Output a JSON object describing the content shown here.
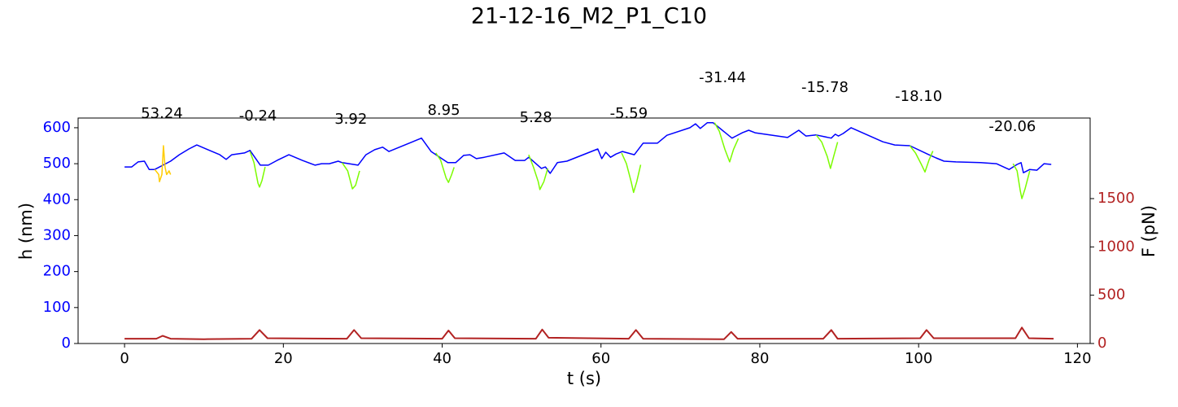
{
  "chart_data": {
    "type": "line",
    "title": "21-12-16_M2_P1_C10",
    "xlabel": "t (s)",
    "ylabel": "h (nm)",
    "y2label": "F (pN)",
    "ylabel_color": "#0000ff",
    "y2label_color": "#b22222",
    "xlim": [
      -5.85,
      121.6
    ],
    "xticks": [
      0,
      20,
      40,
      60,
      80,
      100,
      120
    ],
    "ylim": [
      0,
      627
    ],
    "yticks": [
      0,
      100,
      200,
      300,
      400,
      500,
      600
    ],
    "y2lim": [
      0,
      2334
    ],
    "y2ticks": [
      0,
      500,
      1000,
      1500
    ],
    "series": [
      {
        "color": "#0000ff",
        "axis": "y",
        "x": [
          0,
          0.9,
          1.7,
          2.5,
          3.1,
          3.8,
          5.8,
          6.9,
          8.1,
          9.1,
          10.5,
          12,
          12.8,
          13.5,
          15.1,
          15.8,
          17.1,
          18.1,
          19.2,
          20.7,
          22.4,
          24,
          24.8,
          25.8,
          26.9,
          27.4,
          29.4,
          30.4,
          31.5,
          32.5,
          33.3,
          37.4,
          38.6,
          40.7,
          41.7,
          42.7,
          43.5,
          44.3,
          45.3,
          47.8,
          49.2,
          50.4,
          50.9,
          52.5,
          53,
          53.6,
          54.5,
          55.7,
          59.6,
          60.1,
          60.6,
          61.2,
          61.9,
          62.7,
          64.2,
          65.3,
          65.9,
          67.1,
          68.3,
          71.2,
          71.9,
          72.5,
          73.4,
          74.1,
          76.5,
          77,
          77.8,
          78.6,
          79.4,
          83.5,
          84.9,
          85.8,
          87.1,
          89,
          89.5,
          89.9,
          90.5,
          91.5,
          95.5,
          97,
          98.9,
          101.1,
          102.2,
          103.2,
          104.7,
          107.8,
          109.8,
          111.4,
          112.4,
          112.9,
          113.2,
          114,
          114.9,
          115.8,
          116.7
        ],
        "values": [
          491,
          491,
          505,
          507,
          484,
          484,
          507,
          525,
          541,
          552,
          539,
          525,
          512,
          525,
          530,
          537,
          496,
          496,
          509,
          525,
          509,
          496,
          500,
          500,
          507,
          503,
          496,
          525,
          539,
          546,
          534,
          571,
          534,
          503,
          503,
          523,
          525,
          514,
          518,
          530,
          509,
          509,
          518,
          487,
          491,
          473,
          503,
          507,
          541,
          514,
          532,
          518,
          527,
          534,
          525,
          557,
          557,
          557,
          579,
          600,
          611,
          598,
          614,
          614,
          571,
          577,
          586,
          593,
          586,
          573,
          593,
          577,
          580,
          571,
          582,
          577,
          584,
          600,
          561,
          552,
          550,
          527,
          516,
          507,
          505,
          503,
          500,
          484,
          498,
          503,
          475,
          484,
          482,
          500,
          498
        ]
      },
      {
        "color": "#ffcc00",
        "axis": "y",
        "x": [
          3.8,
          4.3,
          4.4,
          4.7,
          4.9,
          5.1,
          5.3,
          5.6,
          5.8
        ],
        "values": [
          484,
          470,
          450,
          470,
          550,
          490,
          470,
          480,
          470
        ]
      },
      {
        "color": "#7cfc00",
        "axis": "y",
        "x": [
          15.8,
          16.3,
          16.8,
          17.0,
          17.3,
          17.7,
          null,
          27.4,
          28.1,
          28.7,
          29.1,
          29.6,
          null,
          39.2,
          39.8,
          40.5,
          40.8,
          41.2,
          41.5,
          null,
          50.9,
          51.5,
          52.1,
          52.3,
          52.8,
          53.3,
          null,
          62.6,
          63.2,
          63.8,
          64.1,
          64.5,
          65.0,
          null,
          74.3,
          74.9,
          75.6,
          76.2,
          76.7,
          77.3,
          null,
          87.1,
          87.8,
          88.5,
          88.9,
          89.3,
          89.8,
          null,
          98.9,
          99.6,
          100.3,
          100.8,
          101.3,
          101.8,
          null,
          111.9,
          112.4,
          112.8,
          113.0,
          113.4,
          114.0
        ],
        "values": [
          534,
          503,
          446,
          435,
          453,
          491,
          null,
          503,
          480,
          430,
          440,
          480,
          null,
          530,
          510,
          460,
          448,
          470,
          490,
          null,
          525,
          490,
          450,
          428,
          450,
          487,
          null,
          530,
          500,
          450,
          420,
          450,
          497,
          null,
          614,
          590,
          540,
          505,
          540,
          570,
          null,
          580,
          560,
          520,
          487,
          520,
          560,
          null,
          550,
          530,
          500,
          477,
          510,
          535,
          null,
          500,
          480,
          425,
          403,
          430,
          480
        ]
      },
      {
        "color": "#b22222",
        "axis": "y2",
        "x": [
          0,
          4,
          4.8,
          5.8,
          10,
          16,
          17,
          18,
          28,
          28.9,
          29.8,
          40,
          40.8,
          41.6,
          51.8,
          52.6,
          53.4,
          63.5,
          64.4,
          65.3,
          75.5,
          76.4,
          77.2,
          88,
          89,
          89.8,
          100.2,
          101,
          101.9,
          112.2,
          113,
          113.9,
          117
        ],
        "values": [
          50,
          50,
          80,
          50,
          45,
          50,
          140,
          55,
          50,
          140,
          55,
          50,
          135,
          55,
          50,
          145,
          60,
          50,
          140,
          50,
          45,
          120,
          50,
          50,
          140,
          50,
          55,
          140,
          55,
          55,
          165,
          55,
          50
        ]
      }
    ],
    "annotations": [
      {
        "text": "53.24",
        "x": 4.7,
        "y": 638
      },
      {
        "text": "-0.24",
        "x": 16.8,
        "y": 632
      },
      {
        "text": "3.92",
        "x": 28.5,
        "y": 623
      },
      {
        "text": "8.95",
        "x": 40.2,
        "y": 647
      },
      {
        "text": "5.28",
        "x": 51.8,
        "y": 627
      },
      {
        "text": "-5.59",
        "x": 63.5,
        "y": 638
      },
      {
        "text": "-31.44",
        "x": 75.3,
        "y": 738
      },
      {
        "text": "-15.78",
        "x": 88.2,
        "y": 711
      },
      {
        "text": "-18.10",
        "x": 100,
        "y": 686
      },
      {
        "text": "-20.06",
        "x": 111.8,
        "y": 602
      }
    ]
  }
}
